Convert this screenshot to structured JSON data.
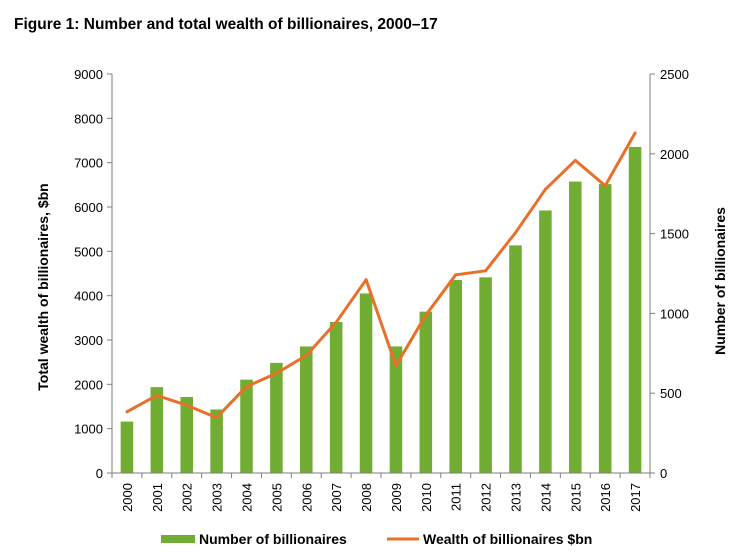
{
  "chart_data": {
    "type": "bar",
    "title": "Figure 1: Number and total wealth of billionaires, 2000–17",
    "categories": [
      "2000",
      "2001",
      "2002",
      "2003",
      "2004",
      "2005",
      "2006",
      "2007",
      "2008",
      "2009",
      "2010",
      "2011",
      "2012",
      "2013",
      "2014",
      "2015",
      "2016",
      "2017"
    ],
    "series": [
      {
        "name": "Number of billionaires",
        "type": "bar",
        "axis": "right",
        "color": "#70ad32",
        "values": [
          322,
          538,
          476,
          398,
          585,
          690,
          793,
          946,
          1125,
          793,
          1011,
          1209,
          1226,
          1426,
          1645,
          1826,
          1810,
          2043
        ]
      },
      {
        "name": "Wealth of billionaires $bn",
        "type": "line",
        "axis": "left",
        "color": "#e8702a",
        "values": [
          1380,
          1750,
          1530,
          1250,
          1950,
          2250,
          2650,
          3400,
          4360,
          2420,
          3560,
          4470,
          4560,
          5420,
          6400,
          7050,
          6480,
          7670
        ]
      }
    ],
    "ylabel": "Total wealth of billionaires, $bn",
    "y2label": "Number of billionaires",
    "ylim": [
      0,
      9000
    ],
    "y2lim": [
      0,
      2500
    ],
    "yticks": [
      "0",
      "1000",
      "2000",
      "3000",
      "4000",
      "5000",
      "6000",
      "7000",
      "8000",
      "9000"
    ],
    "y2ticks": [
      "0",
      "500",
      "1000",
      "1500",
      "2000",
      "2500"
    ],
    "grid": false,
    "legend": "bottom"
  }
}
